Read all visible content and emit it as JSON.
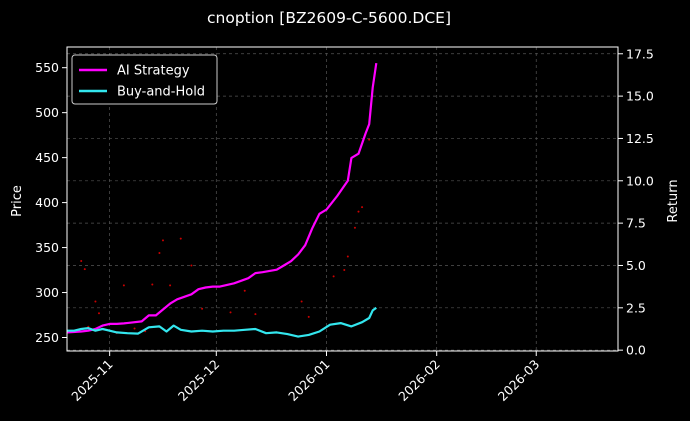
{
  "chart_data": {
    "type": "line",
    "title": "cnoption [BZ2609-C-5600.DCE]",
    "ylabel": "Price",
    "y2label": "Return",
    "xlim": [
      "2025-10-20",
      "2026-03-24"
    ],
    "ylim": [
      235,
      573
    ],
    "y2lim": [
      -0.05,
      17.9
    ],
    "grid": true,
    "legend_position": "upper-left",
    "colors": {
      "background": "#000000",
      "ai": "#ff00ff",
      "bh": "#33e6ee",
      "scatter": "#cc0000",
      "grid": "#555555"
    },
    "x_ticks": [
      {
        "date": "2025-11-01",
        "label": "2025-11"
      },
      {
        "date": "2025-12-01",
        "label": "2025-12"
      },
      {
        "date": "2026-01-01",
        "label": "2026-01"
      },
      {
        "date": "2026-02-01",
        "label": "2026-02"
      },
      {
        "date": "2026-03-01",
        "label": "2026-03"
      }
    ],
    "y_ticks": [
      {
        "value": 250,
        "label": "250"
      },
      {
        "value": 300,
        "label": "300"
      },
      {
        "value": 350,
        "label": "350"
      },
      {
        "value": 400,
        "label": "400"
      },
      {
        "value": 450,
        "label": "450"
      },
      {
        "value": 500,
        "label": "500"
      },
      {
        "value": 550,
        "label": "550"
      }
    ],
    "y2_ticks": [
      {
        "value": 0.0,
        "label": "0.0"
      },
      {
        "value": 2.5,
        "label": "2.5"
      },
      {
        "value": 5.0,
        "label": "5.0"
      },
      {
        "value": 7.5,
        "label": "7.5"
      },
      {
        "value": 10.0,
        "label": "10.0"
      },
      {
        "value": 12.5,
        "label": "12.5"
      },
      {
        "value": 15.0,
        "label": "15.0"
      },
      {
        "value": 17.5,
        "label": "17.5"
      }
    ],
    "series": [
      {
        "name": "AI Strategy",
        "axis": "right",
        "x": [
          "2025-10-20",
          "2025-10-24",
          "2025-10-26",
          "2025-10-28",
          "2025-10-30",
          "2025-11-01",
          "2025-11-03",
          "2025-11-05",
          "2025-11-10",
          "2025-11-12",
          "2025-11-14",
          "2025-11-16",
          "2025-11-18",
          "2025-11-20",
          "2025-11-22",
          "2025-11-24",
          "2025-11-26",
          "2025-11-28",
          "2025-11-30",
          "2025-12-02",
          "2025-12-06",
          "2025-12-10",
          "2025-12-12",
          "2025-12-14",
          "2025-12-18",
          "2025-12-20",
          "2025-12-22",
          "2025-12-24",
          "2025-12-26",
          "2025-12-28",
          "2025-12-30",
          "2026-01-01",
          "2026-01-04",
          "2026-01-07",
          "2026-01-08",
          "2026-01-10",
          "2026-01-12",
          "2026-01-13",
          "2026-01-14",
          "2026-01-15"
        ],
        "values": [
          1.05,
          1.1,
          1.15,
          1.25,
          1.45,
          1.55,
          1.55,
          1.58,
          1.7,
          2.05,
          2.05,
          2.4,
          2.75,
          3.0,
          3.15,
          3.3,
          3.6,
          3.7,
          3.75,
          3.75,
          3.95,
          4.25,
          4.55,
          4.6,
          4.75,
          5.0,
          5.25,
          5.65,
          6.2,
          7.2,
          8.05,
          8.3,
          9.1,
          10.0,
          11.35,
          11.6,
          12.8,
          13.35,
          15.5,
          16.95
        ]
      },
      {
        "name": "Buy-and-Hold",
        "axis": "right",
        "x": [
          "2025-10-20",
          "2025-10-22",
          "2025-10-24",
          "2025-10-26",
          "2025-10-28",
          "2025-10-30",
          "2025-11-01",
          "2025-11-03",
          "2025-11-06",
          "2025-11-09",
          "2025-11-12",
          "2025-11-15",
          "2025-11-17",
          "2025-11-19",
          "2025-11-21",
          "2025-11-24",
          "2025-11-27",
          "2025-11-30",
          "2025-12-03",
          "2025-12-06",
          "2025-12-09",
          "2025-12-12",
          "2025-12-15",
          "2025-12-18",
          "2025-12-21",
          "2025-12-24",
          "2025-12-27",
          "2025-12-30",
          "2026-01-02",
          "2026-01-05",
          "2026-01-08",
          "2026-01-11",
          "2026-01-13",
          "2026-01-14",
          "2026-01-15"
        ],
        "values": [
          1.15,
          1.15,
          1.25,
          1.3,
          1.15,
          1.25,
          1.15,
          1.05,
          1.0,
          0.98,
          1.35,
          1.4,
          1.1,
          1.45,
          1.2,
          1.1,
          1.15,
          1.1,
          1.15,
          1.15,
          1.2,
          1.25,
          1.0,
          1.05,
          0.95,
          0.8,
          0.9,
          1.1,
          1.5,
          1.6,
          1.4,
          1.65,
          1.9,
          2.35,
          2.5
        ]
      }
    ],
    "scatter": {
      "axis": "left",
      "x": [
        "2025-10-23",
        "2025-10-24",
        "2025-10-25",
        "2025-10-26",
        "2025-10-28",
        "2025-10-29",
        "2025-11-03",
        "2025-11-05",
        "2025-11-08",
        "2025-11-11",
        "2025-11-13",
        "2025-11-15",
        "2025-11-16",
        "2025-11-18",
        "2025-11-21",
        "2025-11-24",
        "2025-11-27",
        "2025-12-05",
        "2025-12-09",
        "2025-12-12",
        "2025-12-25",
        "2025-12-27",
        "2026-01-03",
        "2026-01-06",
        "2026-01-07",
        "2026-01-09",
        "2026-01-10",
        "2026-01-11",
        "2026-01-13"
      ],
      "values": [
        258,
        335,
        326,
        262,
        290,
        277,
        255,
        308,
        260,
        257,
        309,
        344,
        358,
        308,
        360,
        330,
        282,
        278,
        302,
        276,
        290,
        273,
        318,
        325,
        340,
        372,
        390,
        395,
        470
      ]
    }
  }
}
